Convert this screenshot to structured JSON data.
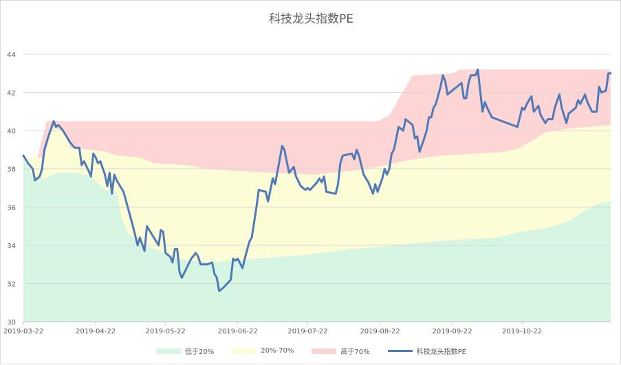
{
  "chart_data": {
    "type": "area",
    "title": "科技龙头指数PE",
    "xlabel": "",
    "ylabel": "",
    "ylim": [
      30,
      44
    ],
    "yticks": [
      "30",
      "32",
      "34",
      "36",
      "38",
      "40",
      "42",
      "44"
    ],
    "x_start": "2019-03-22",
    "x_end": "2019-11-29",
    "xticks": [
      "2019-03-22",
      "2019-04-22",
      "2019-05-22",
      "2019-06-22",
      "2019-07-22",
      "2019-08-22",
      "2019-09-22",
      "2019-10-22"
    ],
    "grid": true,
    "legend_position": "bottom",
    "series": [
      {
        "name": "低于20%",
        "kind": "band",
        "color": "#d6f5e3",
        "points": [
          [
            "2019-03-22",
            38.6
          ],
          [
            "2019-03-26",
            37.6
          ],
          [
            "2019-03-31",
            37.5
          ],
          [
            "2019-04-06",
            37.8
          ],
          [
            "2019-04-13",
            37.8
          ],
          [
            "2019-04-20",
            37.6
          ],
          [
            "2019-04-26",
            36.9
          ],
          [
            "2019-05-01",
            36.8
          ],
          [
            "2019-05-03",
            35.5
          ],
          [
            "2019-05-06",
            34.6
          ],
          [
            "2019-05-13",
            34.0
          ],
          [
            "2019-05-20",
            33.7
          ],
          [
            "2019-05-27",
            33.3
          ],
          [
            "2019-06-01",
            33.2
          ],
          [
            "2019-06-10",
            33.1
          ],
          [
            "2019-06-20",
            33.2
          ],
          [
            "2019-07-01",
            33.3
          ],
          [
            "2019-07-21",
            33.5
          ],
          [
            "2019-08-10",
            33.8
          ],
          [
            "2019-08-21",
            33.9
          ],
          [
            "2019-09-05",
            34.1
          ],
          [
            "2019-09-25",
            34.3
          ],
          [
            "2019-10-11",
            34.4
          ],
          [
            "2019-10-21",
            34.7
          ],
          [
            "2019-11-01",
            34.9
          ],
          [
            "2019-11-10",
            35.2
          ],
          [
            "2019-11-18",
            35.8
          ],
          [
            "2019-11-24",
            36.2
          ],
          [
            "2019-11-29",
            36.3
          ]
        ]
      },
      {
        "name": "20%-70%",
        "kind": "band",
        "color": "#fcfcd6",
        "points": [
          [
            "2019-03-22",
            38.6
          ],
          [
            "2019-03-31",
            38.6
          ],
          [
            "2019-04-03",
            40.1
          ],
          [
            "2019-04-08",
            40.1
          ],
          [
            "2019-04-11",
            39.1
          ],
          [
            "2019-04-20",
            39.0
          ],
          [
            "2019-04-26",
            38.9
          ],
          [
            "2019-05-01",
            38.7
          ],
          [
            "2019-05-11",
            38.6
          ],
          [
            "2019-05-17",
            38.3
          ],
          [
            "2019-05-31",
            38.2
          ],
          [
            "2019-06-10",
            38.0
          ],
          [
            "2019-06-20",
            37.9
          ],
          [
            "2019-07-05",
            37.8
          ],
          [
            "2019-07-25",
            37.7
          ],
          [
            "2019-08-10",
            37.9
          ],
          [
            "2019-08-21",
            38.1
          ],
          [
            "2019-09-05",
            38.5
          ],
          [
            "2019-09-18",
            38.7
          ],
          [
            "2019-10-01",
            38.8
          ],
          [
            "2019-10-15",
            38.9
          ],
          [
            "2019-10-21",
            39.1
          ],
          [
            "2019-11-01",
            39.9
          ],
          [
            "2019-11-10",
            40.1
          ],
          [
            "2019-11-29",
            40.3
          ]
        ]
      },
      {
        "name": "高于70%",
        "kind": "band",
        "color": "#fdd5d5",
        "points": [
          [
            "2019-03-22",
            38.6
          ],
          [
            "2019-03-28",
            38.6
          ],
          [
            "2019-04-01",
            40.5
          ],
          [
            "2019-08-21",
            40.5
          ],
          [
            "2019-08-26",
            40.8
          ],
          [
            "2019-09-05",
            42.9
          ],
          [
            "2019-09-22",
            43.0
          ],
          [
            "2019-09-25",
            43.2
          ],
          [
            "2019-11-29",
            43.2
          ]
        ]
      },
      {
        "name": "科技龙头指数PE",
        "kind": "line",
        "color": "#4f7ab8",
        "points": [
          [
            "2019-03-22",
            38.7
          ],
          [
            "2019-03-24",
            38.3
          ],
          [
            "2019-03-26",
            38.0
          ],
          [
            "2019-03-27",
            37.4
          ],
          [
            "2019-03-29",
            37.6
          ],
          [
            "2019-03-30",
            38.0
          ],
          [
            "2019-03-31",
            39.0
          ],
          [
            "2019-04-02",
            39.8
          ],
          [
            "2019-04-04",
            40.5
          ],
          [
            "2019-04-05",
            40.2
          ],
          [
            "2019-04-06",
            40.3
          ],
          [
            "2019-04-08",
            40.0
          ],
          [
            "2019-04-11",
            39.4
          ],
          [
            "2019-04-13",
            39.1
          ],
          [
            "2019-04-15",
            39.1
          ],
          [
            "2019-04-16",
            38.2
          ],
          [
            "2019-04-17",
            38.4
          ],
          [
            "2019-04-19",
            37.9
          ],
          [
            "2019-04-20",
            37.6
          ],
          [
            "2019-04-21",
            38.8
          ],
          [
            "2019-04-22",
            38.6
          ],
          [
            "2019-04-23",
            38.3
          ],
          [
            "2019-04-24",
            38.4
          ],
          [
            "2019-04-26",
            37.7
          ],
          [
            "2019-04-27",
            37.1
          ],
          [
            "2019-04-28",
            37.8
          ],
          [
            "2019-04-29",
            36.7
          ],
          [
            "2019-04-30",
            37.7
          ],
          [
            "2019-05-01",
            37.4
          ],
          [
            "2019-05-04",
            36.8
          ],
          [
            "2019-05-06",
            35.9
          ],
          [
            "2019-05-08",
            35.0
          ],
          [
            "2019-05-10",
            34.0
          ],
          [
            "2019-05-11",
            34.4
          ],
          [
            "2019-05-13",
            33.7
          ],
          [
            "2019-05-14",
            35.0
          ],
          [
            "2019-05-16",
            34.6
          ],
          [
            "2019-05-19",
            34.0
          ],
          [
            "2019-05-20",
            34.8
          ],
          [
            "2019-05-21",
            34.7
          ],
          [
            "2019-05-22",
            33.6
          ],
          [
            "2019-05-24",
            33.4
          ],
          [
            "2019-05-25",
            33.1
          ],
          [
            "2019-05-26",
            33.8
          ],
          [
            "2019-05-27",
            33.8
          ],
          [
            "2019-05-28",
            32.6
          ],
          [
            "2019-05-29",
            32.3
          ],
          [
            "2019-05-31",
            32.8
          ],
          [
            "2019-06-02",
            33.3
          ],
          [
            "2019-06-04",
            33.6
          ],
          [
            "2019-06-05",
            33.4
          ],
          [
            "2019-06-06",
            33.0
          ],
          [
            "2019-06-09",
            33.0
          ],
          [
            "2019-06-11",
            33.1
          ],
          [
            "2019-06-12",
            32.5
          ],
          [
            "2019-06-13",
            32.3
          ],
          [
            "2019-06-14",
            31.6
          ],
          [
            "2019-06-16",
            31.8
          ],
          [
            "2019-06-19",
            32.2
          ],
          [
            "2019-06-20",
            33.3
          ],
          [
            "2019-06-21",
            33.2
          ],
          [
            "2019-06-22",
            33.3
          ],
          [
            "2019-06-24",
            32.8
          ],
          [
            "2019-06-25",
            33.3
          ],
          [
            "2019-06-27",
            34.2
          ],
          [
            "2019-06-28",
            34.4
          ],
          [
            "2019-06-30",
            36.0
          ],
          [
            "2019-07-01",
            36.9
          ],
          [
            "2019-07-04",
            36.8
          ],
          [
            "2019-07-05",
            36.3
          ],
          [
            "2019-07-07",
            37.5
          ],
          [
            "2019-07-08",
            37.2
          ],
          [
            "2019-07-10",
            38.5
          ],
          [
            "2019-07-11",
            39.2
          ],
          [
            "2019-07-12",
            39.0
          ],
          [
            "2019-07-13",
            38.4
          ],
          [
            "2019-07-14",
            37.8
          ],
          [
            "2019-07-16",
            38.1
          ],
          [
            "2019-07-17",
            37.6
          ],
          [
            "2019-07-19",
            37.1
          ],
          [
            "2019-07-21",
            36.9
          ],
          [
            "2019-07-22",
            37.0
          ],
          [
            "2019-07-23",
            36.9
          ],
          [
            "2019-07-26",
            37.3
          ],
          [
            "2019-07-27",
            37.5
          ],
          [
            "2019-07-28",
            37.3
          ],
          [
            "2019-07-29",
            37.6
          ],
          [
            "2019-07-30",
            36.8
          ],
          [
            "2019-08-03",
            36.7
          ],
          [
            "2019-08-04",
            37.2
          ],
          [
            "2019-08-05",
            38.3
          ],
          [
            "2019-08-06",
            38.7
          ],
          [
            "2019-08-10",
            38.8
          ],
          [
            "2019-08-11",
            38.5
          ],
          [
            "2019-08-12",
            39.0
          ],
          [
            "2019-08-13",
            38.7
          ],
          [
            "2019-08-15",
            37.7
          ],
          [
            "2019-08-17",
            37.3
          ],
          [
            "2019-08-19",
            36.7
          ],
          [
            "2019-08-20",
            37.2
          ],
          [
            "2019-08-21",
            36.8
          ],
          [
            "2019-08-23",
            37.5
          ],
          [
            "2019-08-24",
            38.0
          ],
          [
            "2019-08-25",
            37.7
          ],
          [
            "2019-08-26",
            38.0
          ],
          [
            "2019-08-27",
            38.8
          ],
          [
            "2019-08-28",
            39.0
          ],
          [
            "2019-08-29",
            39.6
          ],
          [
            "2019-08-30",
            40.2
          ],
          [
            "2019-09-01",
            40.0
          ],
          [
            "2019-09-02",
            40.6
          ],
          [
            "2019-09-04",
            40.4
          ],
          [
            "2019-09-05",
            40.3
          ],
          [
            "2019-09-06",
            39.6
          ],
          [
            "2019-09-07",
            39.7
          ],
          [
            "2019-09-08",
            38.9
          ],
          [
            "2019-09-10",
            39.6
          ],
          [
            "2019-09-11",
            40.0
          ],
          [
            "2019-09-12",
            40.7
          ],
          [
            "2019-09-13",
            40.7
          ],
          [
            "2019-09-14",
            41.2
          ],
          [
            "2019-09-15",
            41.4
          ],
          [
            "2019-09-17",
            42.3
          ],
          [
            "2019-09-18",
            42.9
          ],
          [
            "2019-09-19",
            42.6
          ],
          [
            "2019-09-20",
            41.9
          ],
          [
            "2019-09-22",
            42.1
          ],
          [
            "2019-09-25",
            42.4
          ],
          [
            "2019-09-26",
            42.5
          ],
          [
            "2019-09-27",
            41.7
          ],
          [
            "2019-09-28",
            41.7
          ],
          [
            "2019-09-29",
            42.5
          ],
          [
            "2019-09-30",
            42.9
          ],
          [
            "2019-10-02",
            42.9
          ],
          [
            "2019-10-03",
            43.2
          ],
          [
            "2019-10-05",
            41.0
          ],
          [
            "2019-10-06",
            41.5
          ],
          [
            "2019-10-07",
            41.2
          ],
          [
            "2019-10-09",
            40.7
          ],
          [
            "2019-10-20",
            40.2
          ],
          [
            "2019-10-22",
            41.2
          ],
          [
            "2019-10-23",
            41.1
          ],
          [
            "2019-10-24",
            41.4
          ],
          [
            "2019-10-26",
            41.8
          ],
          [
            "2019-10-27",
            41.0
          ],
          [
            "2019-10-29",
            41.3
          ],
          [
            "2019-10-30",
            40.8
          ],
          [
            "2019-11-01",
            40.4
          ],
          [
            "2019-11-02",
            40.6
          ],
          [
            "2019-11-04",
            40.6
          ],
          [
            "2019-11-05",
            41.2
          ],
          [
            "2019-11-07",
            41.9
          ],
          [
            "2019-11-08",
            41.2
          ],
          [
            "2019-11-10",
            40.4
          ],
          [
            "2019-11-11",
            40.9
          ],
          [
            "2019-11-14",
            41.2
          ],
          [
            "2019-11-15",
            41.6
          ],
          [
            "2019-11-16",
            41.4
          ],
          [
            "2019-11-18",
            41.9
          ],
          [
            "2019-11-19",
            41.5
          ],
          [
            "2019-11-21",
            41.0
          ],
          [
            "2019-11-23",
            41.0
          ],
          [
            "2019-11-24",
            42.3
          ],
          [
            "2019-11-25",
            42.0
          ],
          [
            "2019-11-27",
            42.1
          ],
          [
            "2019-11-28",
            43.0
          ],
          [
            "2019-11-29",
            43.0
          ]
        ]
      }
    ]
  }
}
